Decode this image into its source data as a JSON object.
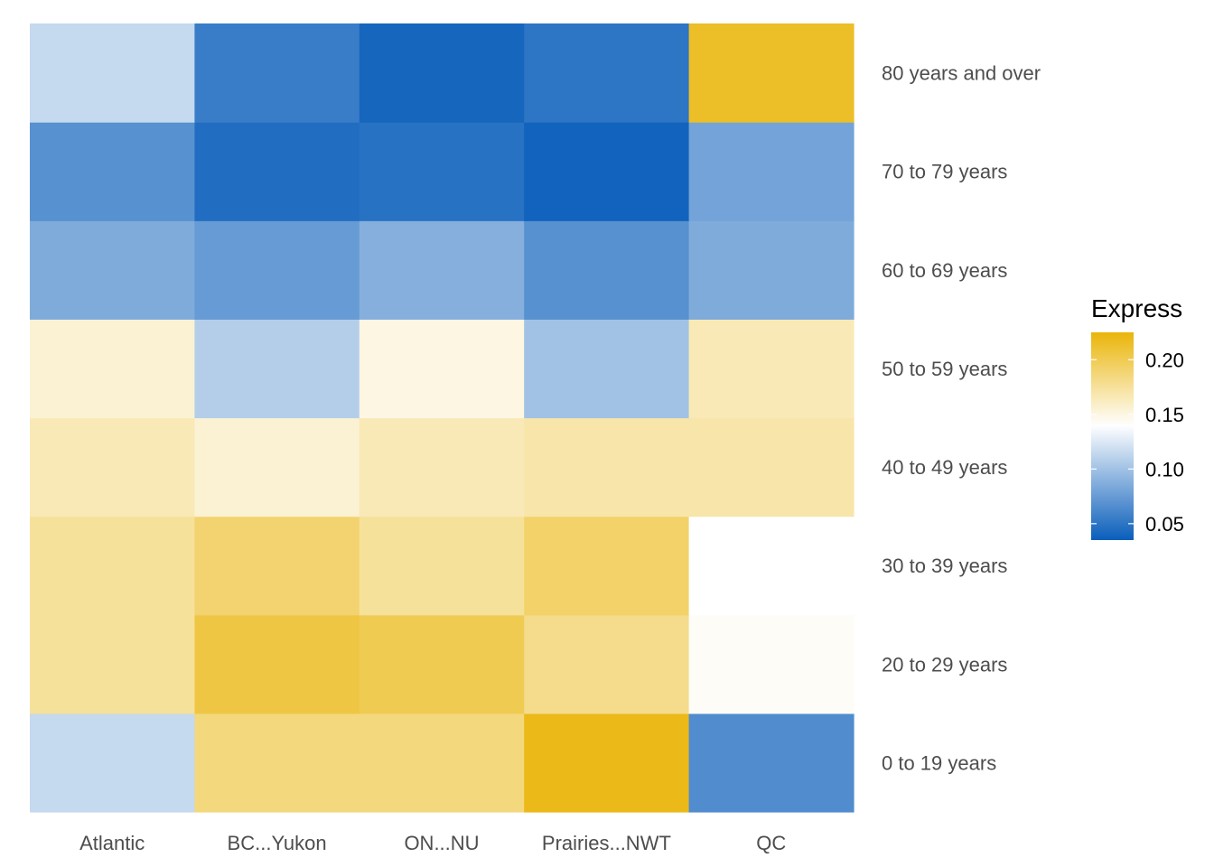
{
  "chart_data": {
    "type": "heatmap",
    "x_categories": [
      "Atlantic",
      "BC...Yukon",
      "ON...NU",
      "Prairies...NWT",
      "QC"
    ],
    "y_categories": [
      "0 to 19 years",
      "20 to 29 years",
      "30 to 39 years",
      "40 to 49 years",
      "50 to 59 years",
      "60 to 69 years",
      "70 to 79 years",
      "80 years and over"
    ],
    "values": [
      [
        0.115,
        0.185,
        0.185,
        0.22,
        0.065
      ],
      [
        0.175,
        0.205,
        0.2,
        0.18,
        0.143
      ],
      [
        0.175,
        0.19,
        0.175,
        0.192,
        0.14
      ],
      [
        0.165,
        0.155,
        0.165,
        0.17,
        0.17
      ],
      [
        0.155,
        0.108,
        0.15,
        0.1,
        0.165
      ],
      [
        0.085,
        0.075,
        0.088,
        0.068,
        0.085
      ],
      [
        0.068,
        0.045,
        0.048,
        0.038,
        0.08
      ],
      [
        0.115,
        0.055,
        0.04,
        0.05,
        0.215
      ]
    ],
    "legend": {
      "title": "Express",
      "position": "right",
      "ticks": [
        0.05,
        0.1,
        0.15,
        0.2
      ],
      "tick_labels": [
        "0.05",
        "0.10",
        "0.15",
        "0.20"
      ],
      "range": [
        0.035,
        0.225
      ],
      "midpoint": 0.14,
      "low_color": "#0a5ebb",
      "mid_color": "#ffffff",
      "high_color": "#eab50a"
    },
    "grid": false
  }
}
